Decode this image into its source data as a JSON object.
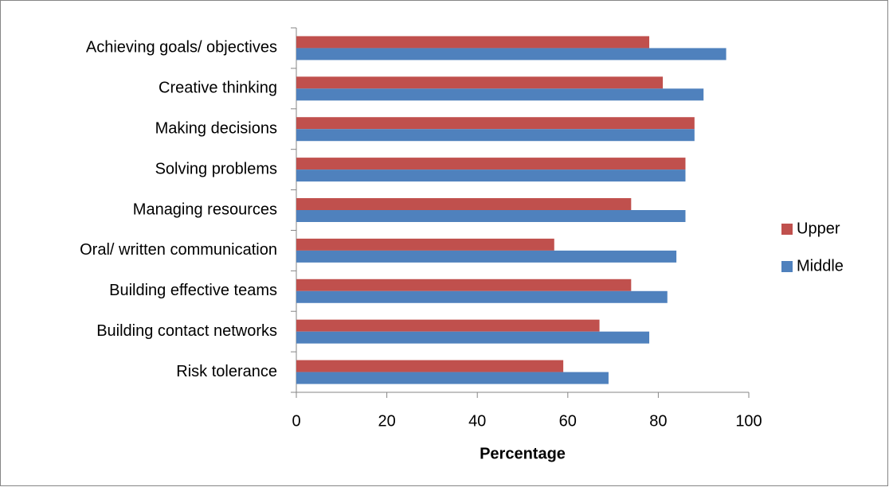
{
  "chart_data": {
    "type": "hbar",
    "x_label": "Percentage",
    "categories": [
      "Achieving goals/ objectives",
      "Creative thinking",
      "Making decisions",
      "Solving problems",
      "Managing resources",
      "Oral/ written communication",
      "Building effective teams",
      "Building contact networks",
      "Risk tolerance"
    ],
    "series": [
      {
        "name": "Upper",
        "color": "#c0504d",
        "values": [
          78,
          81,
          88,
          86,
          74,
          57,
          74,
          67,
          59
        ]
      },
      {
        "name": "Middle",
        "color": "#4f81bd",
        "values": [
          95,
          90,
          88,
          86,
          86,
          84,
          82,
          78,
          69
        ]
      }
    ],
    "xlim": [
      0,
      100
    ],
    "xticks": [
      0,
      20,
      40,
      60,
      80,
      100
    ],
    "grid": false,
    "legend": "right"
  }
}
